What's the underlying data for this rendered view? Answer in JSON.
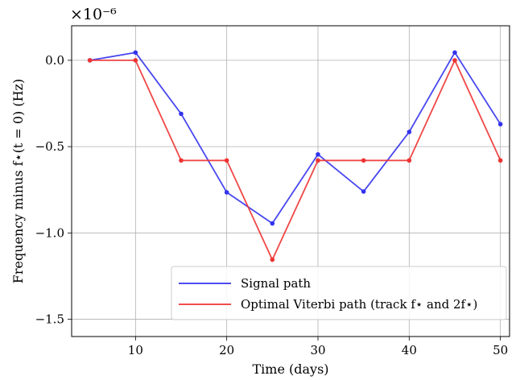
{
  "chart_data": {
    "type": "line",
    "xlabel": "Time (days)",
    "ylabel": "Frequency minus f⋆(t = 0) (Hz)",
    "y_offset_text": "×10⁻⁶",
    "xlim": [
      3,
      51
    ],
    "ylim": [
      -1.6,
      0.2
    ],
    "xticks": [
      10,
      20,
      30,
      40,
      50
    ],
    "yticks": [
      0.0,
      -0.5,
      -1.0,
      -1.5
    ],
    "ytick_labels": [
      "0.0",
      "−0.5",
      "−1.0",
      "−1.5"
    ],
    "grid": true,
    "legend_position": "lower-right",
    "x": [
      5,
      10,
      15,
      20,
      25,
      30,
      35,
      40,
      45,
      50
    ],
    "series": [
      {
        "name": "Signal path",
        "color": "#3333ee",
        "values": [
          0.0,
          0.045,
          -0.31,
          -0.765,
          -0.945,
          -0.545,
          -0.76,
          -0.415,
          0.045,
          -0.37
        ]
      },
      {
        "name": "Optimal Viterbi path (track f⋆ and 2f⋆)",
        "color": "#ee3333",
        "values": [
          0.0,
          0.0,
          -0.58,
          -0.58,
          -1.155,
          -0.58,
          -0.58,
          -0.58,
          0.0,
          -0.58
        ]
      }
    ]
  }
}
